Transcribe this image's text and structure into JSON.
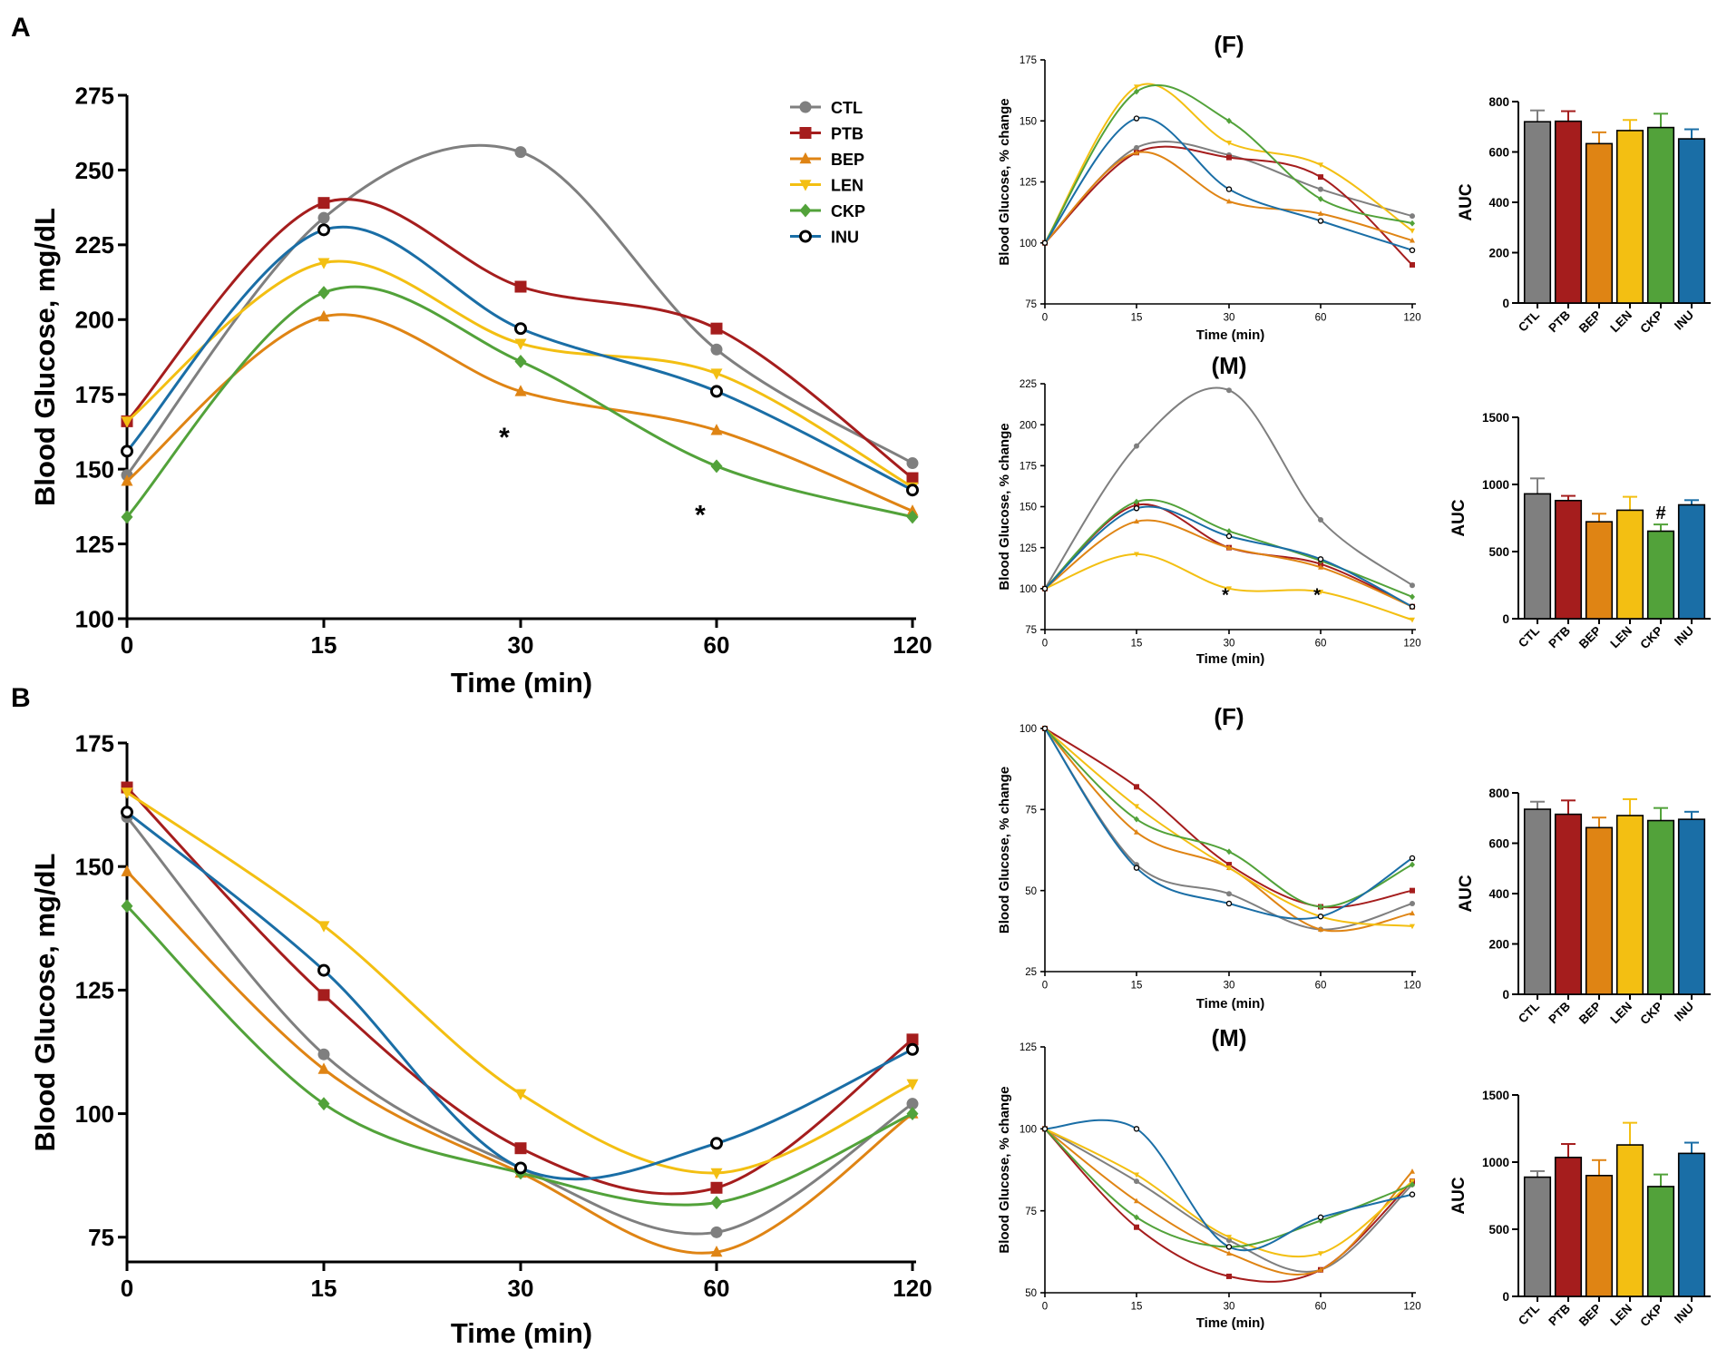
{
  "colors": {
    "CTL": "#7f7f7f",
    "PTB": "#a51d1d",
    "BEP": "#df8414",
    "LEN": "#f3bf12",
    "CKP": "#52a23a",
    "INU": "#1a6ea6"
  },
  "chart_data": [
    {
      "id": "A_main",
      "type": "line",
      "panel_label": "A",
      "xlabel": "Time (min)",
      "ylabel": "Blood Glucose, mg/dL",
      "x": [
        0,
        15,
        30,
        60,
        120
      ],
      "xticklabels": [
        "0",
        "15",
        "30",
        "60",
        "120"
      ],
      "ylim": [
        100,
        275
      ],
      "yticks": [
        100,
        125,
        150,
        175,
        200,
        225,
        250,
        275
      ],
      "legend": "top-right",
      "series": [
        {
          "name": "CTL",
          "values": [
            148,
            234,
            256,
            190,
            152
          ]
        },
        {
          "name": "PTB",
          "values": [
            166,
            239,
            211,
            197,
            147
          ]
        },
        {
          "name": "BEP",
          "values": [
            146,
            201,
            176,
            163,
            136
          ]
        },
        {
          "name": "LEN",
          "values": [
            166,
            219,
            192,
            182,
            144
          ]
        },
        {
          "name": "CKP",
          "values": [
            134,
            209,
            186,
            151,
            134
          ]
        },
        {
          "name": "INU",
          "values": [
            156,
            230,
            197,
            176,
            143
          ]
        }
      ],
      "annotations": [
        {
          "text": "*",
          "x": 30,
          "y": 171
        },
        {
          "text": "*",
          "x": 60,
          "y": 145
        }
      ]
    },
    {
      "id": "A_F_line",
      "type": "line",
      "title": "(F)",
      "xlabel": "Time (min)",
      "ylabel": "Blood Glucose, % change",
      "x": [
        0,
        15,
        30,
        60,
        120
      ],
      "xticklabels": [
        "0",
        "15",
        "30",
        "60",
        "120"
      ],
      "ylim": [
        75,
        175
      ],
      "yticks": [
        75,
        100,
        125,
        150,
        175
      ],
      "series": [
        {
          "name": "CTL",
          "values": [
            100,
            139,
            136,
            122,
            111
          ]
        },
        {
          "name": "PTB",
          "values": [
            100,
            137,
            135,
            127,
            91
          ]
        },
        {
          "name": "BEP",
          "values": [
            100,
            137,
            117,
            112,
            101
          ]
        },
        {
          "name": "LEN",
          "values": [
            100,
            164,
            141,
            132,
            105
          ]
        },
        {
          "name": "CKP",
          "values": [
            100,
            162,
            150,
            118,
            108
          ]
        },
        {
          "name": "INU",
          "values": [
            100,
            151,
            122,
            109,
            97
          ]
        }
      ]
    },
    {
      "id": "A_F_auc",
      "type": "bar",
      "ylabel": "AUC",
      "categories": [
        "CTL",
        "PTB",
        "BEP",
        "LEN",
        "CKP",
        "INU"
      ],
      "values": [
        720,
        722,
        633,
        685,
        697,
        652
      ],
      "errors": [
        45,
        40,
        45,
        42,
        55,
        38
      ],
      "ylim": [
        0,
        800
      ],
      "yticks": [
        0,
        200,
        400,
        600,
        800
      ]
    },
    {
      "id": "A_M_line",
      "type": "line",
      "title": "(M)",
      "xlabel": "Time (min)",
      "ylabel": "Blood Glucose, % change",
      "x": [
        0,
        15,
        30,
        60,
        120
      ],
      "xticklabels": [
        "0",
        "15",
        "30",
        "60",
        "120"
      ],
      "ylim": [
        75,
        225
      ],
      "yticks": [
        75,
        100,
        125,
        150,
        175,
        200,
        225
      ],
      "series": [
        {
          "name": "CTL",
          "values": [
            100,
            187,
            221,
            142,
            102
          ]
        },
        {
          "name": "PTB",
          "values": [
            100,
            151,
            125,
            115,
            89
          ]
        },
        {
          "name": "BEP",
          "values": [
            100,
            141,
            125,
            113,
            89
          ]
        },
        {
          "name": "LEN",
          "values": [
            100,
            121,
            100,
            98,
            81
          ]
        },
        {
          "name": "CKP",
          "values": [
            100,
            153,
            135,
            117,
            95
          ]
        },
        {
          "name": "INU",
          "values": [
            100,
            149,
            132,
            118,
            89
          ]
        }
      ],
      "annotations": [
        {
          "text": "*",
          "x": 30,
          "y": 97
        },
        {
          "text": "*",
          "x": 60,
          "y": 97
        }
      ]
    },
    {
      "id": "A_M_auc",
      "type": "bar",
      "ylabel": "AUC",
      "categories": [
        "CTL",
        "PTB",
        "BEP",
        "LEN",
        "CKP",
        "INU"
      ],
      "values": [
        930,
        880,
        722,
        808,
        652,
        848
      ],
      "errors": [
        115,
        35,
        60,
        100,
        50,
        35
      ],
      "ylim": [
        0,
        1500
      ],
      "yticks": [
        0,
        500,
        1000,
        1500
      ],
      "annotations": [
        {
          "text": "#",
          "category": "CKP"
        }
      ]
    },
    {
      "id": "B_main",
      "type": "line",
      "panel_label": "B",
      "xlabel": "Time (min)",
      "ylabel": "Blood Glucose, mg/dL",
      "x": [
        0,
        15,
        30,
        60,
        120
      ],
      "xticklabels": [
        "0",
        "15",
        "30",
        "60",
        "120"
      ],
      "ylim": [
        70,
        175
      ],
      "yticks": [
        75,
        100,
        125,
        150,
        175
      ],
      "series": [
        {
          "name": "CTL",
          "values": [
            160,
            112,
            89,
            76,
            102
          ]
        },
        {
          "name": "PTB",
          "values": [
            166,
            124,
            93,
            85,
            115
          ]
        },
        {
          "name": "BEP",
          "values": [
            149,
            109,
            88,
            72,
            100
          ]
        },
        {
          "name": "LEN",
          "values": [
            165,
            138,
            104,
            88,
            106
          ]
        },
        {
          "name": "CKP",
          "values": [
            142,
            102,
            88,
            82,
            100
          ]
        },
        {
          "name": "INU",
          "values": [
            161,
            129,
            89,
            94,
            113
          ]
        }
      ]
    },
    {
      "id": "B_F_line",
      "type": "line",
      "title": "(F)",
      "xlabel": "Time (min)",
      "ylabel": "Blood Glucose, % change",
      "x": [
        0,
        15,
        30,
        60,
        120
      ],
      "xticklabels": [
        "0",
        "15",
        "30",
        "60",
        "120"
      ],
      "ylim": [
        25,
        100
      ],
      "yticks": [
        25,
        50,
        75,
        100
      ],
      "series": [
        {
          "name": "CTL",
          "values": [
            100,
            58,
            49,
            38,
            46
          ]
        },
        {
          "name": "PTB",
          "values": [
            100,
            82,
            58,
            45,
            50
          ]
        },
        {
          "name": "BEP",
          "values": [
            100,
            68,
            57,
            38,
            43
          ]
        },
        {
          "name": "LEN",
          "values": [
            100,
            76,
            57,
            42,
            39
          ]
        },
        {
          "name": "CKP",
          "values": [
            100,
            72,
            62,
            45,
            58
          ]
        },
        {
          "name": "INU",
          "values": [
            100,
            57,
            46,
            42,
            60
          ]
        }
      ]
    },
    {
      "id": "B_F_auc",
      "type": "bar",
      "ylabel": "AUC",
      "categories": [
        "CTL",
        "PTB",
        "BEP",
        "LEN",
        "CKP",
        "INU"
      ],
      "values": [
        735,
        715,
        662,
        710,
        690,
        695
      ],
      "errors": [
        30,
        55,
        40,
        65,
        50,
        30
      ],
      "ylim": [
        0,
        800
      ],
      "yticks": [
        0,
        200,
        400,
        600,
        800
      ]
    },
    {
      "id": "B_M_line",
      "type": "line",
      "title": "(M)",
      "xlabel": "Time (min)",
      "ylabel": "Blood Glucose, % change",
      "x": [
        0,
        15,
        30,
        60,
        120
      ],
      "xticklabels": [
        "0",
        "15",
        "30",
        "60",
        "120"
      ],
      "ylim": [
        50,
        125
      ],
      "yticks": [
        50,
        75,
        100,
        125
      ],
      "series": [
        {
          "name": "CTL",
          "values": [
            100,
            84,
            66,
            57,
            83
          ]
        },
        {
          "name": "PTB",
          "values": [
            100,
            70,
            55,
            57,
            84
          ]
        },
        {
          "name": "BEP",
          "values": [
            100,
            78,
            62,
            57,
            87
          ]
        },
        {
          "name": "LEN",
          "values": [
            100,
            86,
            67,
            62,
            84
          ]
        },
        {
          "name": "CKP",
          "values": [
            100,
            73,
            64,
            72,
            83
          ]
        },
        {
          "name": "INU",
          "values": [
            100,
            100,
            64,
            73,
            80
          ]
        }
      ]
    },
    {
      "id": "B_M_auc",
      "type": "bar",
      "ylabel": "AUC",
      "categories": [
        "CTL",
        "PTB",
        "BEP",
        "LEN",
        "CKP",
        "INU"
      ],
      "values": [
        888,
        1035,
        900,
        1128,
        818,
        1065
      ],
      "errors": [
        45,
        100,
        115,
        165,
        90,
        80
      ],
      "ylim": [
        0,
        1500
      ],
      "yticks": [
        0,
        500,
        1000,
        1500
      ]
    }
  ]
}
